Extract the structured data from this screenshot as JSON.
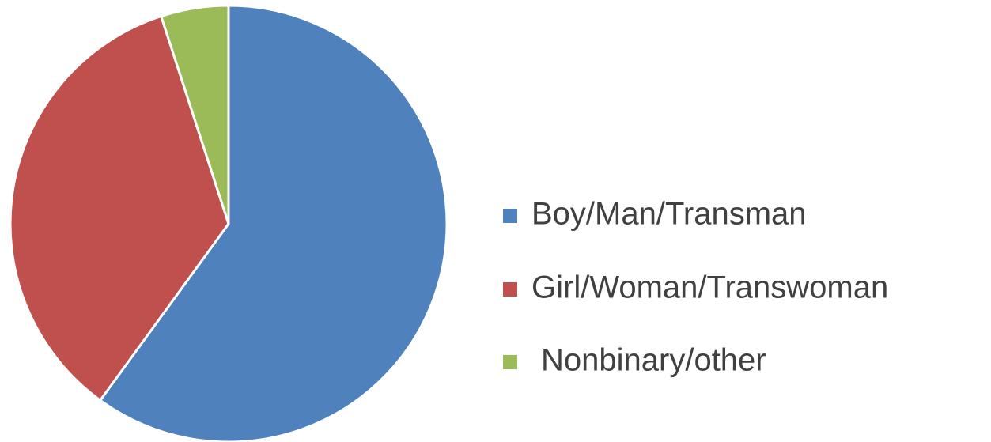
{
  "chart_data": {
    "type": "pie",
    "categories": [
      "Boy/Man/Transman",
      "Girl/Woman/Transwoman",
      "Nonbinary/other"
    ],
    "values": [
      60,
      35,
      5
    ],
    "colors": [
      "#4f81bd",
      "#c0504d",
      "#9bbb59"
    ],
    "legend": "right"
  }
}
